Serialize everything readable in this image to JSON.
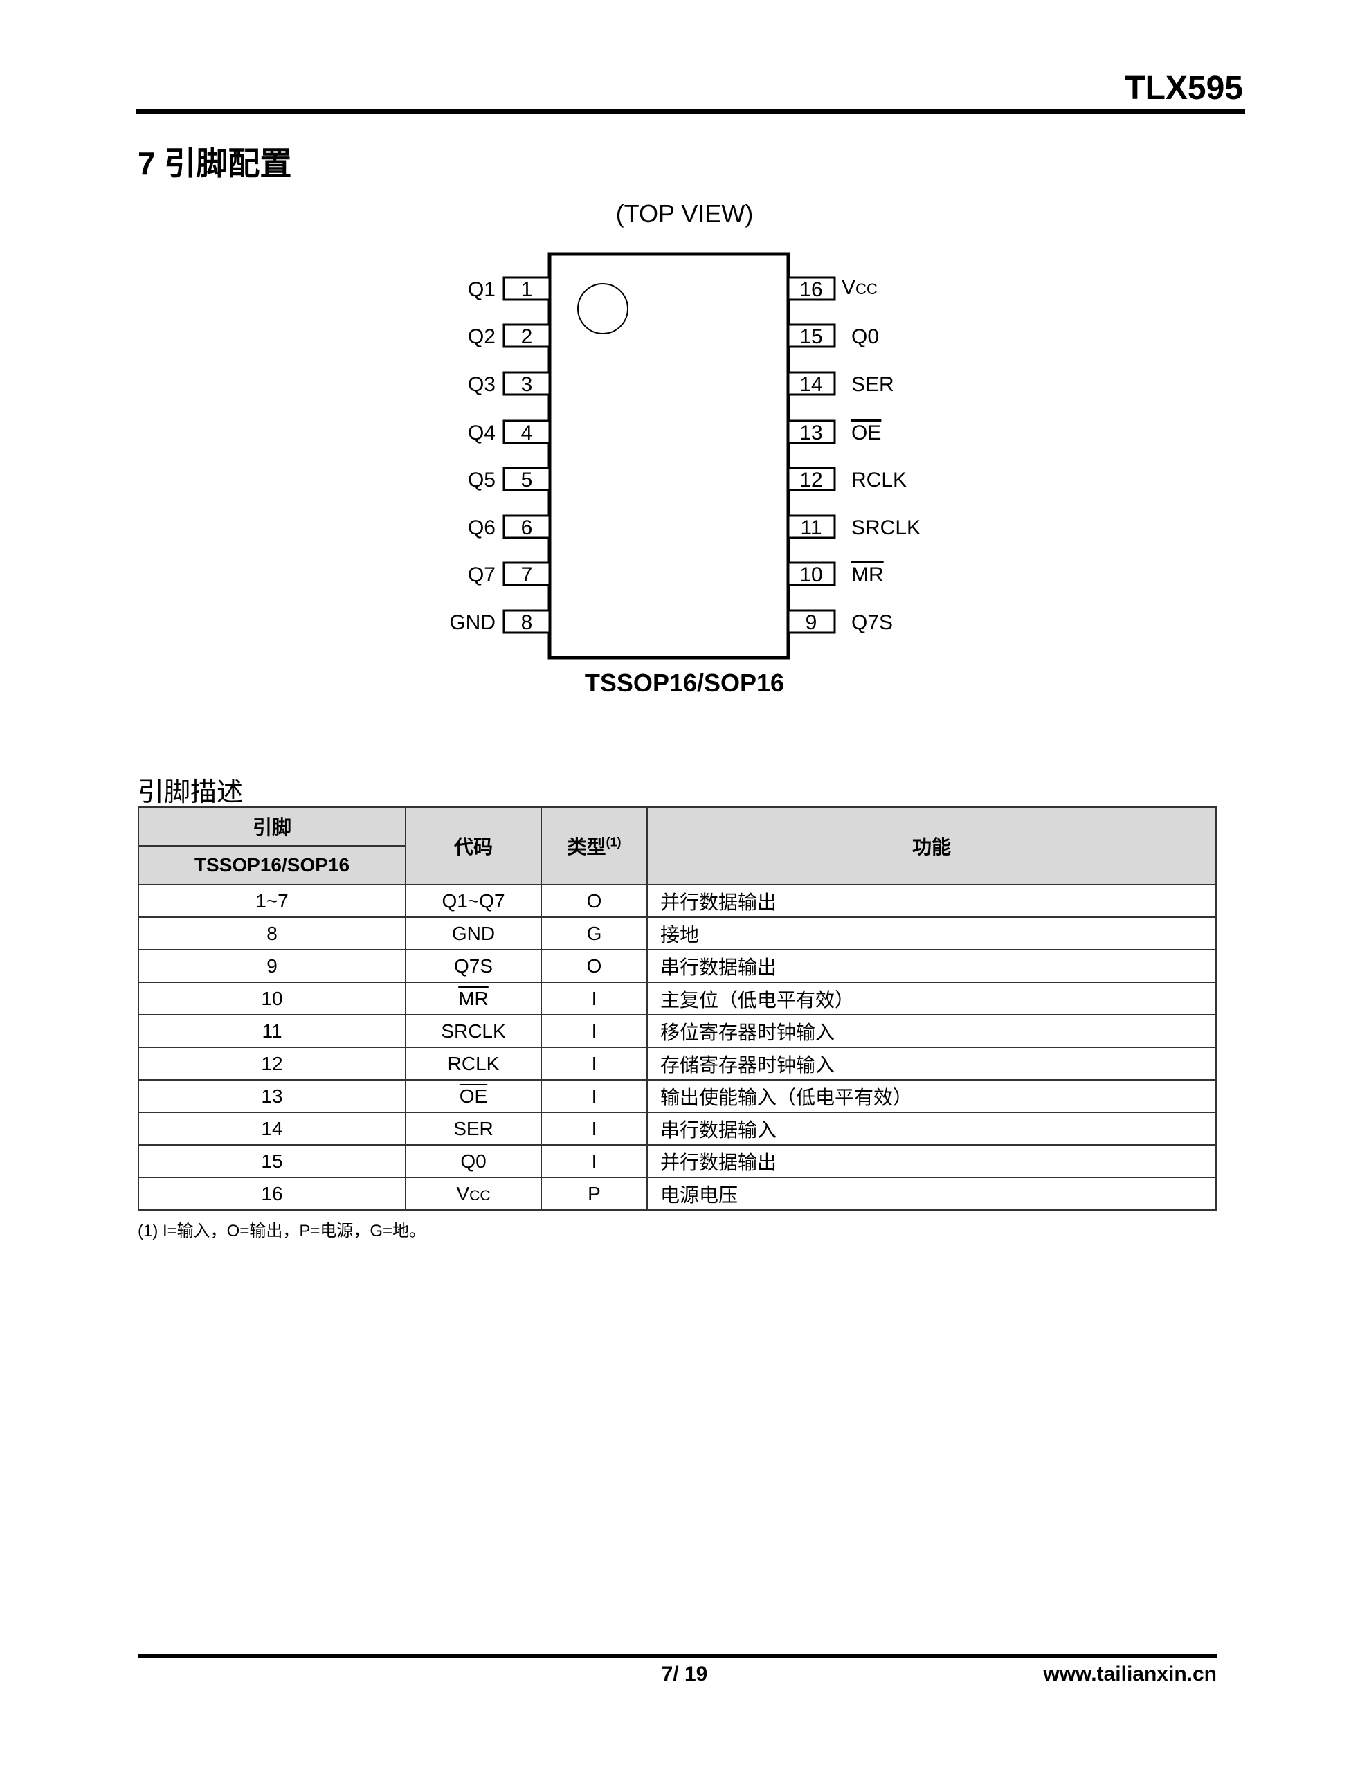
{
  "header": {
    "title": "TLX595"
  },
  "section": {
    "title": "7 引脚配置"
  },
  "diagram": {
    "view_label": "(TOP VIEW)",
    "package": "TSSOP16/SOP16",
    "left_pins": [
      {
        "num": "1",
        "name": "Q1"
      },
      {
        "num": "2",
        "name": "Q2"
      },
      {
        "num": "3",
        "name": "Q3"
      },
      {
        "num": "4",
        "name": "Q4"
      },
      {
        "num": "5",
        "name": "Q5"
      },
      {
        "num": "6",
        "name": "Q6"
      },
      {
        "num": "7",
        "name": "Q7"
      },
      {
        "num": "8",
        "name": "GND"
      }
    ],
    "right_pins": [
      {
        "num": "16",
        "name": "VCC",
        "overline": false
      },
      {
        "num": "15",
        "name": "Q0",
        "overline": false
      },
      {
        "num": "14",
        "name": "SER",
        "overline": false
      },
      {
        "num": "13",
        "name": "OE",
        "overline": true
      },
      {
        "num": "12",
        "name": "RCLK",
        "overline": false
      },
      {
        "num": "11",
        "name": "SRCLK",
        "overline": false
      },
      {
        "num": "10",
        "name": "MR",
        "overline": true
      },
      {
        "num": "9",
        "name": "Q7S",
        "overline": false
      }
    ]
  },
  "table": {
    "title": "引脚描述",
    "headers": {
      "pin": "引脚",
      "package": "TSSOP16/SOP16",
      "code": "代码",
      "type": "类型",
      "type_note": "(1)",
      "function": "功能"
    },
    "rows": [
      {
        "pin": "1~7",
        "code": "Q1~Q7",
        "type": "O",
        "function": "并行数据输出"
      },
      {
        "pin": "8",
        "code": "GND",
        "type": "G",
        "function": "接地"
      },
      {
        "pin": "9",
        "code": "Q7S",
        "type": "O",
        "function": "串行数据输出"
      },
      {
        "pin": "10",
        "code": "MR",
        "overline": true,
        "type": "I",
        "function": "主复位（低电平有效）"
      },
      {
        "pin": "11",
        "code": "SRCLK",
        "type": "I",
        "function": "移位寄存器时钟输入"
      },
      {
        "pin": "12",
        "code": "RCLK",
        "type": "I",
        "function": "存储寄存器时钟输入"
      },
      {
        "pin": "13",
        "code": "OE",
        "overline": true,
        "type": "I",
        "function": "输出使能输入（低电平有效）"
      },
      {
        "pin": "14",
        "code": "SER",
        "type": "I",
        "function": "串行数据输入"
      },
      {
        "pin": "15",
        "code": "Q0",
        "type": "I",
        "function": "并行数据输出"
      },
      {
        "pin": "16",
        "code": "VCC",
        "type": "P",
        "function": "电源电压"
      }
    ],
    "footnote": "(1)   I=输入，O=输出，P=电源，G=地。"
  },
  "footer": {
    "page": "7/ 19",
    "website": "www.tailianxin.cn"
  }
}
